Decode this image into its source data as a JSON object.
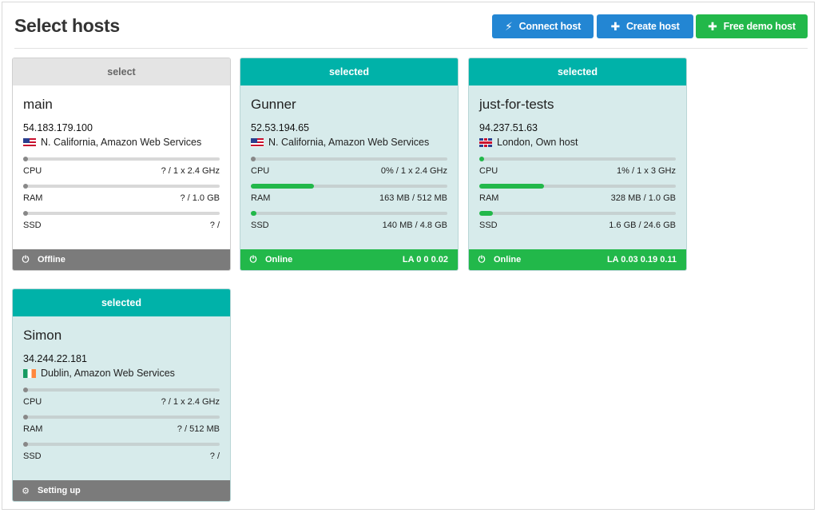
{
  "header": {
    "title": "Select hosts",
    "buttons": {
      "connect": "Connect host",
      "create": "Create host",
      "demo": "Free demo host"
    }
  },
  "metric_labels": {
    "cpu": "CPU",
    "ram": "RAM",
    "ssd": "SSD"
  },
  "hosts": [
    {
      "select_label": "select",
      "name": "main",
      "ip": "54.183.179.100",
      "flag": "flag-us",
      "location": "N. California, Amazon Web Services",
      "cpu": {
        "value": "? / 1 x 2.4 GHz",
        "level": 0
      },
      "ram": {
        "value": "? / 1.0 GB",
        "level": 0
      },
      "ssd": {
        "value": "? /",
        "level": 0
      },
      "status": "Offline",
      "load": ""
    },
    {
      "select_label": "selected",
      "name": "Gunner",
      "ip": "52.53.194.65",
      "flag": "flag-us",
      "location": "N. California, Amazon Web Services",
      "cpu": {
        "value": "0% / 1 x 2.4 GHz",
        "level": 0
      },
      "ram": {
        "value": "163 MB / 512 MB",
        "level": 0.32
      },
      "ssd": {
        "value": "140 MB / 4.8 GB",
        "level": 0.03
      },
      "status": "Online",
      "load": "LA 0 0 0.02"
    },
    {
      "select_label": "selected",
      "name": "just-for-tests",
      "ip": "94.237.51.63",
      "flag": "flag-gb",
      "location": "London, Own host",
      "cpu": {
        "value": "1% / 1 x 3 GHz",
        "level": 0.01
      },
      "ram": {
        "value": "328 MB / 1.0 GB",
        "level": 0.33
      },
      "ssd": {
        "value": "1.6 GB / 24.6 GB",
        "level": 0.07
      },
      "status": "Online",
      "load": "LA 0.03 0.19 0.11"
    },
    {
      "select_label": "selected",
      "name": "Simon",
      "ip": "34.244.22.181",
      "flag": "flag-ie",
      "location": "Dublin, Amazon Web Services",
      "cpu": {
        "value": "? / 1 x 2.4 GHz",
        "level": 0
      },
      "ram": {
        "value": "? / 512 MB",
        "level": 0
      },
      "ssd": {
        "value": "? /",
        "level": 0
      },
      "status": "Setting up",
      "load": ""
    }
  ],
  "icons": {
    "connect": "plug-icon",
    "create": "plus-icon",
    "demo": "plus-icon",
    "online": "power-icon",
    "offline": "power-icon",
    "setting_up": "gear-icon"
  },
  "colors": {
    "teal": "#00b2a9",
    "blue": "#2386d3",
    "green": "#22b84a",
    "gray": "#7b7b7b"
  }
}
